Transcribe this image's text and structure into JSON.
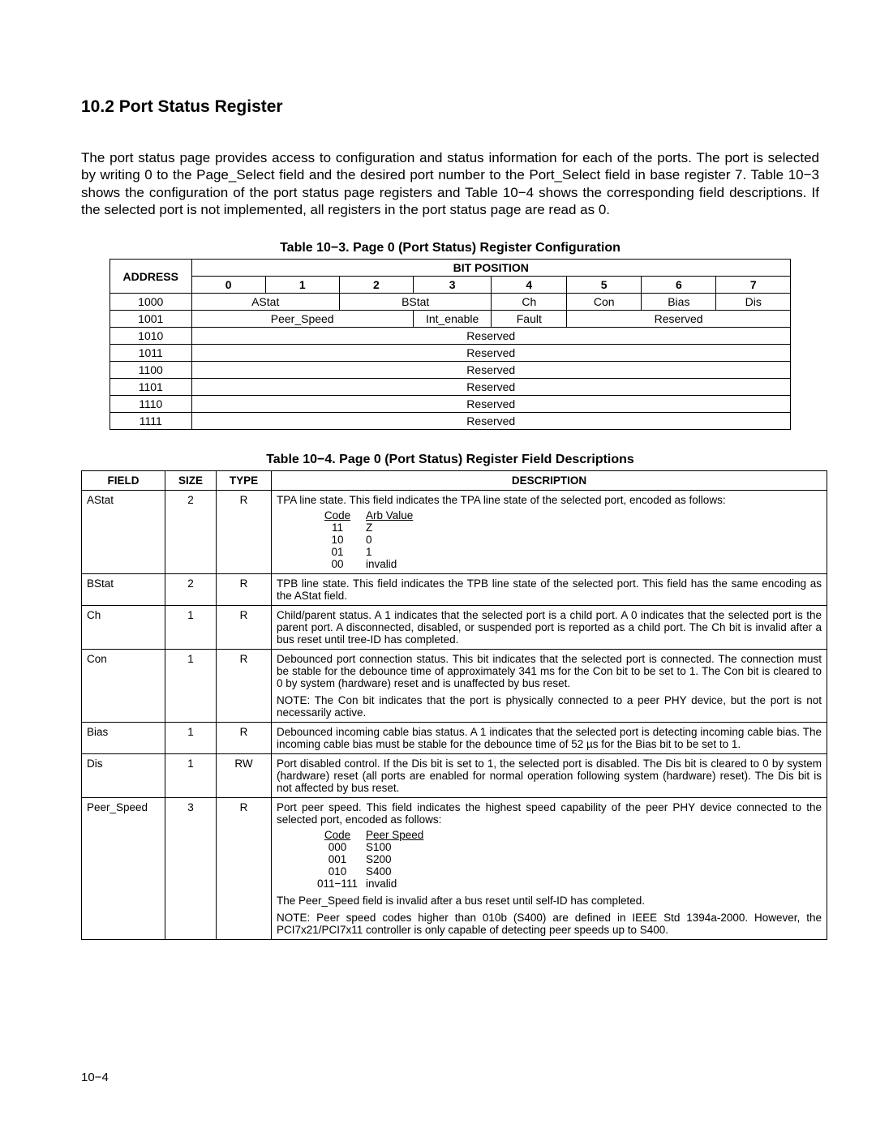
{
  "section": {
    "number": "10.2",
    "title": "Port Status Register"
  },
  "intro": "The port status page provides access to configuration and status information for each of the ports. The port is selected by writing 0 to the Page_Select field and the desired port number to the Port_Select field in base register 7. Table 10−3 shows the configuration of the port status page registers and Table 10−4 shows the corresponding field descriptions. If the selected port is not implemented, all registers in the port status page are read as 0.",
  "table3": {
    "caption": "Table 10−3. Page 0 (Port Status) Register Configuration",
    "addressHeader": "ADDRESS",
    "bitPositionHeader": "BIT POSITION",
    "bits": [
      "0",
      "1",
      "2",
      "3",
      "4",
      "5",
      "6",
      "7"
    ],
    "rows": [
      {
        "addr": "1000",
        "cells": [
          {
            "span": 2,
            "text": "AStat"
          },
          {
            "span": 2,
            "text": "BStat"
          },
          {
            "span": 1,
            "text": "Ch"
          },
          {
            "span": 1,
            "text": "Con"
          },
          {
            "span": 1,
            "text": "Bias"
          },
          {
            "span": 1,
            "text": "Dis"
          }
        ]
      },
      {
        "addr": "1001",
        "cells": [
          {
            "span": 3,
            "text": "Peer_Speed"
          },
          {
            "span": 1,
            "text": "Int_enable"
          },
          {
            "span": 1,
            "text": "Fault"
          },
          {
            "span": 3,
            "text": "Reserved"
          }
        ]
      },
      {
        "addr": "1010",
        "cells": [
          {
            "span": 8,
            "text": "Reserved"
          }
        ]
      },
      {
        "addr": "1011",
        "cells": [
          {
            "span": 8,
            "text": "Reserved"
          }
        ]
      },
      {
        "addr": "1100",
        "cells": [
          {
            "span": 8,
            "text": "Reserved"
          }
        ]
      },
      {
        "addr": "1101",
        "cells": [
          {
            "span": 8,
            "text": "Reserved"
          }
        ]
      },
      {
        "addr": "1110",
        "cells": [
          {
            "span": 8,
            "text": "Reserved"
          }
        ]
      },
      {
        "addr": "1111",
        "cells": [
          {
            "span": 8,
            "text": "Reserved"
          }
        ]
      }
    ]
  },
  "table4": {
    "caption": "Table 10−4. Page 0 (Port Status) Register Field Descriptions",
    "headers": {
      "field": "FIELD",
      "size": "SIZE",
      "type": "TYPE",
      "desc": "DESCRIPTION"
    },
    "rows": [
      {
        "field": "AStat",
        "size": "2",
        "type": "R",
        "desc": {
          "lead": "TPA line state. This field indicates the TPA line state of the selected port, encoded as follows:",
          "codeHeader": [
            "Code",
            "Arb Value"
          ],
          "codes": [
            [
              "11",
              "Z"
            ],
            [
              "10",
              "0"
            ],
            [
              "01",
              "1"
            ],
            [
              "00",
              "invalid"
            ]
          ]
        }
      },
      {
        "field": "BStat",
        "size": "2",
        "type": "R",
        "desc": {
          "text": "TPB line state. This field indicates the TPB line state of the selected port. This field has the same encoding as the AStat field."
        }
      },
      {
        "field": "Ch",
        "size": "1",
        "type": "R",
        "desc": {
          "text": "Child/parent status. A 1 indicates that the selected port is a child port. A 0 indicates that the selected port is the parent port. A disconnected, disabled, or suspended port is reported as a child port. The Ch bit is invalid after a bus reset until tree-ID has completed."
        }
      },
      {
        "field": "Con",
        "size": "1",
        "type": "R",
        "desc": {
          "text": "Debounced port connection status. This bit indicates that the selected port is connected. The connection must be stable for the debounce time of approximately 341 ms for the Con bit to be set to 1. The Con bit is cleared to 0 by system (hardware) reset and is unaffected by bus reset.",
          "note": "NOTE: The Con bit indicates that the port is physically connected to a peer PHY device, but the port is not necessarily active."
        }
      },
      {
        "field": "Bias",
        "size": "1",
        "type": "R",
        "desc": {
          "text": "Debounced incoming cable bias status. A 1 indicates that the selected port is detecting incoming cable bias. The incoming cable bias must be stable for the debounce time of 52 µs for the Bias bit to be set to 1."
        }
      },
      {
        "field": "Dis",
        "size": "1",
        "type": "RW",
        "desc": {
          "text": "Port disabled control. If the Dis bit is set to 1, the selected port is disabled. The Dis bit is cleared to 0 by system (hardware) reset (all ports are enabled for normal operation following system (hardware) reset). The Dis bit is not affected by bus reset."
        }
      },
      {
        "field": "Peer_Speed",
        "size": "3",
        "type": "R",
        "desc": {
          "lead": "Port peer speed. This field indicates the highest speed capability of the peer PHY device connected to the selected port, encoded as follows:",
          "codeHeader": [
            "Code",
            "Peer Speed"
          ],
          "codes": [
            [
              "000",
              "S100"
            ],
            [
              "001",
              "S200"
            ],
            [
              "010",
              "S400"
            ],
            [
              "011−111",
              "invalid"
            ]
          ],
          "tail": "The Peer_Speed field is invalid after a bus reset until self-ID has completed.",
          "note": "NOTE: Peer speed codes higher than 010b (S400) are defined in IEEE Std 1394a-2000. However, the PCI7x21/PCI7x11 controller is only capable of detecting peer speeds up to S400."
        }
      }
    ]
  },
  "pageNumber": "10−4",
  "colors": {
    "text": "#000000",
    "background": "#ffffff",
    "border": "#000000"
  }
}
